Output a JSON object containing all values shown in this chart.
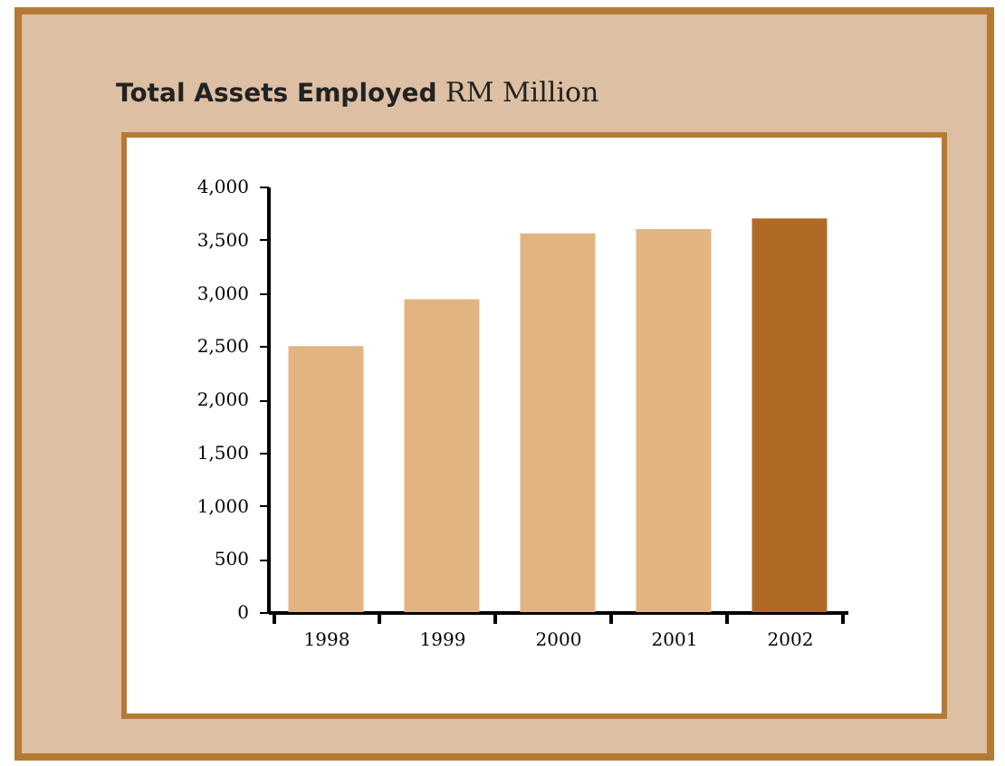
{
  "chart_data": {
    "type": "bar",
    "title": "Total Assets Employed",
    "subtitle": "RM Million",
    "categories": [
      "1998",
      "1999",
      "2000",
      "2001",
      "2002"
    ],
    "values": [
      2500,
      2940,
      3560,
      3600,
      3700
    ],
    "colors": [
      "#e2b482",
      "#e2b482",
      "#e2b482",
      "#e2b482",
      "#b06a26"
    ],
    "ylim": [
      0,
      4000
    ],
    "yticks": [
      0,
      {
        "value": 500,
        "label": "500"
      },
      {
        "value": 1000,
        "label": "1,000"
      },
      {
        "value": 1500,
        "label": "1,500"
      },
      {
        "value": 2000,
        "label": "2,000"
      },
      {
        "value": 2500,
        "label": "2,500"
      },
      {
        "value": 3000,
        "label": "3,000"
      },
      {
        "value": 3500,
        "label": "3,500"
      },
      {
        "value": 4000,
        "label": "4,000"
      }
    ],
    "grid": false
  }
}
